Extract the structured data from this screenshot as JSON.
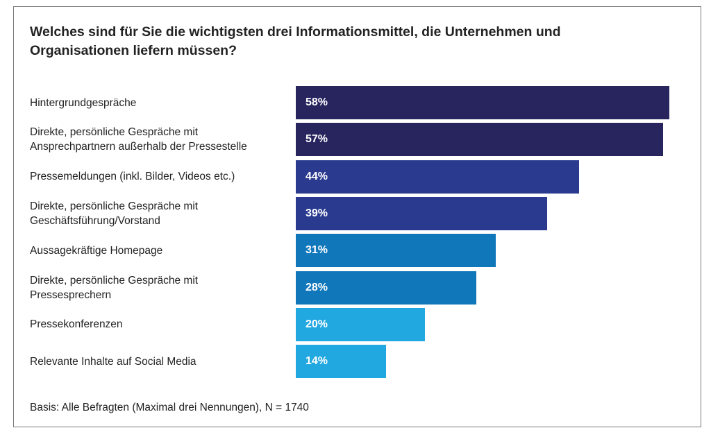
{
  "chart_data": {
    "type": "bar",
    "orientation": "horizontal",
    "title": "Welches sind für Sie die wichtigsten drei Informationsmittel, die Unternehmen und Organisationen liefern müssen?",
    "categories": [
      "Hintergrundgespräche",
      "Direkte, persönliche Gespräche mit Ansprechpartnern außerhalb der Pressestelle",
      "Pressemeldungen (inkl. Bilder, Videos etc.)",
      "Direkte, persönliche Gespräche mit Geschäftsführung/Vorstand",
      "Aussagekräftige Homepage",
      "Direkte, persönliche Gespräche mit Pressesprechern",
      "Pressekonferenzen",
      "Relevante Inhalte auf Social Media"
    ],
    "category_lines": [
      [
        "Hintergrundgespräche"
      ],
      [
        "Direkte, persönliche Gespräche mit",
        "Ansprechpartnern außerhalb der Pressestelle"
      ],
      [
        "Pressemeldungen (inkl. Bilder, Videos etc.)"
      ],
      [
        "Direkte, persönliche Gespräche mit",
        "Geschäftsführung/Vorstand"
      ],
      [
        "Aussagekräftige Homepage"
      ],
      [
        "Direkte, persönliche Gespräche mit",
        "Pressesprechern"
      ],
      [
        "Pressekonferenzen"
      ],
      [
        "Relevante Inhalte auf Social Media"
      ]
    ],
    "values": [
      58,
      57,
      44,
      39,
      31,
      28,
      20,
      14
    ],
    "data_labels": [
      "58%",
      "57%",
      "44%",
      "39%",
      "31%",
      "28%",
      "20%",
      "14%"
    ],
    "colors": [
      "#27245e",
      "#27245e",
      "#2a3a8f",
      "#2a3a8f",
      "#1177bb",
      "#1177bb",
      "#22a8e0",
      "#22a8e0"
    ],
    "grid": false,
    "note": "Basis: Alle Befragten (Maximal drei Nennungen), N = 1740"
  }
}
